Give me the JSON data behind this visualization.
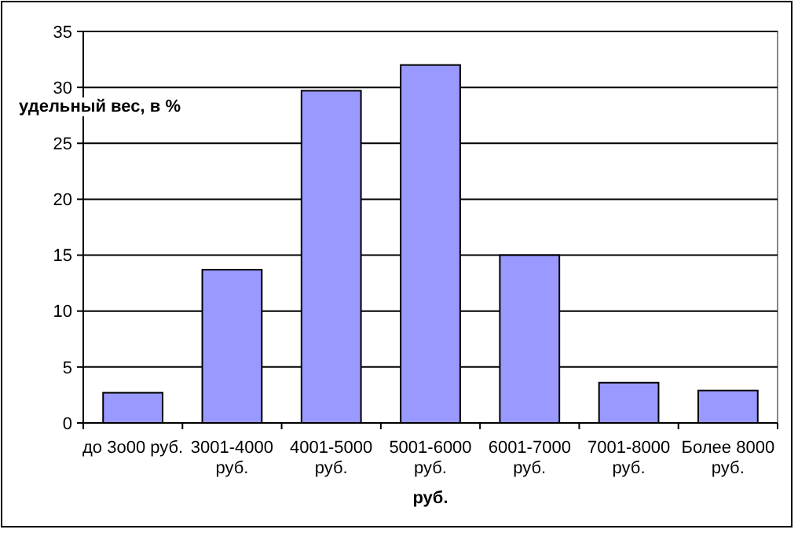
{
  "chart_data": {
    "type": "bar",
    "xlabel": "руб.",
    "ylabel": "удельный вес, в %",
    "categories": [
      "до 3о00 руб.",
      "3001-4000 руб.",
      "4001-5000 руб.",
      "5001-6000 руб.",
      "6001-7000 руб.",
      "7001-8000 руб.",
      "Более 8000 руб."
    ],
    "values": [
      2.7,
      13.7,
      29.7,
      32.0,
      15.0,
      3.6,
      2.9
    ],
    "color": "#9999ff",
    "ylim": [
      0,
      35
    ],
    "yticks": [
      0,
      5,
      10,
      15,
      20,
      25,
      30,
      35
    ],
    "grid": "y"
  }
}
